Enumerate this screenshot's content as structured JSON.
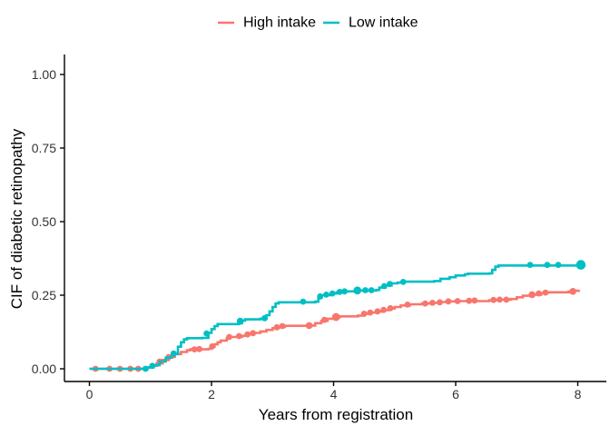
{
  "legend": {
    "items": [
      {
        "label": "High intake"
      },
      {
        "label": "Low intake"
      }
    ]
  },
  "axes": {
    "x": {
      "label": "Years from registration",
      "ticks": [
        "0",
        "2",
        "4",
        "6",
        "8"
      ],
      "tick_values": [
        0,
        2,
        4,
        6,
        8
      ],
      "range": [
        0,
        8
      ]
    },
    "y": {
      "label": "CIF of diabetic retinopathy",
      "ticks": [
        "0.00",
        "0.25",
        "0.50",
        "0.75",
        "1.00"
      ],
      "tick_values": [
        0,
        0.25,
        0.5,
        0.75,
        1
      ],
      "range": [
        0,
        1
      ]
    }
  },
  "chart_data": {
    "type": "line",
    "subtype": "step-cumulative-incidence",
    "title": "",
    "xlabel": "Years from registration",
    "ylabel": "CIF of diabetic retinopathy",
    "xlim": [
      0,
      8.3
    ],
    "ylim": [
      0,
      1
    ],
    "grid": false,
    "legend_position": "top-center",
    "marker_meaning": "censoring-marks",
    "series": [
      {
        "name": "High intake",
        "color": "#F8766D",
        "steps": [
          [
            0,
            0
          ],
          [
            0.85,
            0
          ],
          [
            0.9,
            0.004
          ],
          [
            1.0,
            0.01
          ],
          [
            1.1,
            0.018
          ],
          [
            1.2,
            0.03
          ],
          [
            1.3,
            0.04
          ],
          [
            1.4,
            0.05
          ],
          [
            1.5,
            0.057
          ],
          [
            1.6,
            0.063
          ],
          [
            1.65,
            0.066
          ],
          [
            1.95,
            0.068
          ],
          [
            2.0,
            0.075
          ],
          [
            2.05,
            0.083
          ],
          [
            2.1,
            0.09
          ],
          [
            2.15,
            0.096
          ],
          [
            2.25,
            0.103
          ],
          [
            2.3,
            0.108
          ],
          [
            2.5,
            0.112
          ],
          [
            2.6,
            0.118
          ],
          [
            2.7,
            0.122
          ],
          [
            2.8,
            0.127
          ],
          [
            2.9,
            0.132
          ],
          [
            3.0,
            0.138
          ],
          [
            3.1,
            0.142
          ],
          [
            3.2,
            0.146
          ],
          [
            3.6,
            0.147
          ],
          [
            3.7,
            0.155
          ],
          [
            3.8,
            0.163
          ],
          [
            3.9,
            0.17
          ],
          [
            4.0,
            0.175
          ],
          [
            4.1,
            0.178
          ],
          [
            4.4,
            0.181
          ],
          [
            4.5,
            0.187
          ],
          [
            4.6,
            0.191
          ],
          [
            4.7,
            0.194
          ],
          [
            4.8,
            0.199
          ],
          [
            4.9,
            0.205
          ],
          [
            5.0,
            0.21
          ],
          [
            5.1,
            0.215
          ],
          [
            5.25,
            0.219
          ],
          [
            5.45,
            0.222
          ],
          [
            5.6,
            0.224
          ],
          [
            5.75,
            0.227
          ],
          [
            5.9,
            0.229
          ],
          [
            6.0,
            0.23
          ],
          [
            6.55,
            0.233
          ],
          [
            6.7,
            0.235
          ],
          [
            6.9,
            0.237
          ],
          [
            7.0,
            0.243
          ],
          [
            7.1,
            0.248
          ],
          [
            7.25,
            0.252
          ],
          [
            7.4,
            0.257
          ],
          [
            7.5,
            0.26
          ],
          [
            7.85,
            0.262
          ],
          [
            7.95,
            0.265
          ],
          [
            8.02,
            0.268
          ]
        ],
        "markers": [
          [
            0.1,
            0,
            3.4
          ],
          [
            0.33,
            0,
            3.4
          ],
          [
            0.5,
            0,
            3.4
          ],
          [
            0.67,
            0,
            3.4
          ],
          [
            0.8,
            0,
            3.4
          ],
          [
            1.15,
            0.024,
            3.4
          ],
          [
            1.3,
            0.04,
            3.4
          ],
          [
            1.72,
            0.066,
            3.4
          ],
          [
            1.8,
            0.067,
            3.4
          ],
          [
            2.01,
            0.076,
            3.4
          ],
          [
            2.29,
            0.108,
            3.4
          ],
          [
            2.45,
            0.111,
            3.4
          ],
          [
            2.59,
            0.117,
            3.4
          ],
          [
            2.68,
            0.121,
            3.4
          ],
          [
            3.07,
            0.141,
            3.4
          ],
          [
            3.16,
            0.145,
            3.4
          ],
          [
            3.6,
            0.147,
            3.8
          ],
          [
            3.85,
            0.166,
            3.4
          ],
          [
            4.04,
            0.176,
            4.4
          ],
          [
            4.5,
            0.187,
            3.4
          ],
          [
            4.6,
            0.191,
            3.4
          ],
          [
            4.72,
            0.195,
            3.4
          ],
          [
            4.82,
            0.2,
            3.4
          ],
          [
            4.93,
            0.206,
            3.4
          ],
          [
            5.21,
            0.218,
            3.4
          ],
          [
            5.5,
            0.222,
            3.4
          ],
          [
            5.62,
            0.224,
            3.4
          ],
          [
            5.74,
            0.226,
            3.4
          ],
          [
            5.88,
            0.229,
            3.4
          ],
          [
            6.03,
            0.23,
            3.4
          ],
          [
            6.22,
            0.231,
            3.4
          ],
          [
            6.31,
            0.232,
            3.4
          ],
          [
            6.62,
            0.234,
            3.4
          ],
          [
            6.72,
            0.235,
            3.4
          ],
          [
            6.83,
            0.235,
            3.4
          ],
          [
            7.25,
            0.252,
            3.8
          ],
          [
            7.36,
            0.256,
            3.4
          ],
          [
            7.47,
            0.259,
            3.4
          ],
          [
            7.92,
            0.263,
            3.8
          ]
        ]
      },
      {
        "name": "Low intake",
        "color": "#00BFC4",
        "steps": [
          [
            0,
            0
          ],
          [
            0.88,
            0
          ],
          [
            0.95,
            0.005
          ],
          [
            1.05,
            0.012
          ],
          [
            1.15,
            0.025
          ],
          [
            1.25,
            0.038
          ],
          [
            1.35,
            0.05
          ],
          [
            1.45,
            0.075
          ],
          [
            1.5,
            0.09
          ],
          [
            1.55,
            0.1
          ],
          [
            1.6,
            0.104
          ],
          [
            1.85,
            0.105
          ],
          [
            1.95,
            0.122
          ],
          [
            2.0,
            0.135
          ],
          [
            2.05,
            0.145
          ],
          [
            2.1,
            0.152
          ],
          [
            2.45,
            0.155
          ],
          [
            2.5,
            0.164
          ],
          [
            2.55,
            0.168
          ],
          [
            2.8,
            0.17
          ],
          [
            2.9,
            0.182
          ],
          [
            2.95,
            0.195
          ],
          [
            3.0,
            0.21
          ],
          [
            3.05,
            0.222
          ],
          [
            3.1,
            0.226
          ],
          [
            3.7,
            0.228
          ],
          [
            3.75,
            0.24
          ],
          [
            3.8,
            0.25
          ],
          [
            3.95,
            0.256
          ],
          [
            4.05,
            0.26
          ],
          [
            4.15,
            0.263
          ],
          [
            4.35,
            0.266
          ],
          [
            4.7,
            0.268
          ],
          [
            4.75,
            0.276
          ],
          [
            4.85,
            0.283
          ],
          [
            4.95,
            0.29
          ],
          [
            5.05,
            0.293
          ],
          [
            5.15,
            0.296
          ],
          [
            5.65,
            0.298
          ],
          [
            5.75,
            0.306
          ],
          [
            5.9,
            0.311
          ],
          [
            6.0,
            0.317
          ],
          [
            6.15,
            0.321
          ],
          [
            6.2,
            0.323
          ],
          [
            6.55,
            0.324
          ],
          [
            6.6,
            0.336
          ],
          [
            6.65,
            0.347
          ],
          [
            6.7,
            0.351
          ],
          [
            8.05,
            0.353
          ]
        ],
        "markers": [
          [
            0.92,
            0,
            3.4
          ],
          [
            1.03,
            0.01,
            3.4
          ],
          [
            1.38,
            0.052,
            3.4
          ],
          [
            1.92,
            0.12,
            3.4
          ],
          [
            2.47,
            0.162,
            3.8
          ],
          [
            2.87,
            0.172,
            3.4
          ],
          [
            3.5,
            0.228,
            3.4
          ],
          [
            3.78,
            0.246,
            3.4
          ],
          [
            3.88,
            0.252,
            3.4
          ],
          [
            3.98,
            0.256,
            3.4
          ],
          [
            4.1,
            0.261,
            3.4
          ],
          [
            4.18,
            0.263,
            3.4
          ],
          [
            4.39,
            0.266,
            4.4
          ],
          [
            4.52,
            0.267,
            3.4
          ],
          [
            4.62,
            0.267,
            3.4
          ],
          [
            4.83,
            0.281,
            3.4
          ],
          [
            4.92,
            0.288,
            3.4
          ],
          [
            5.14,
            0.295,
            3.4
          ],
          [
            7.22,
            0.353,
            3.4
          ],
          [
            7.5,
            0.353,
            3.4
          ],
          [
            7.68,
            0.353,
            3.4
          ],
          [
            8.05,
            0.353,
            5.3
          ]
        ]
      }
    ]
  },
  "colors": {
    "high_intake": "#F8766D",
    "low_intake": "#00BFC4",
    "axis_line": "#000000",
    "tick_text": "#333333",
    "background": "#FFFFFF"
  }
}
